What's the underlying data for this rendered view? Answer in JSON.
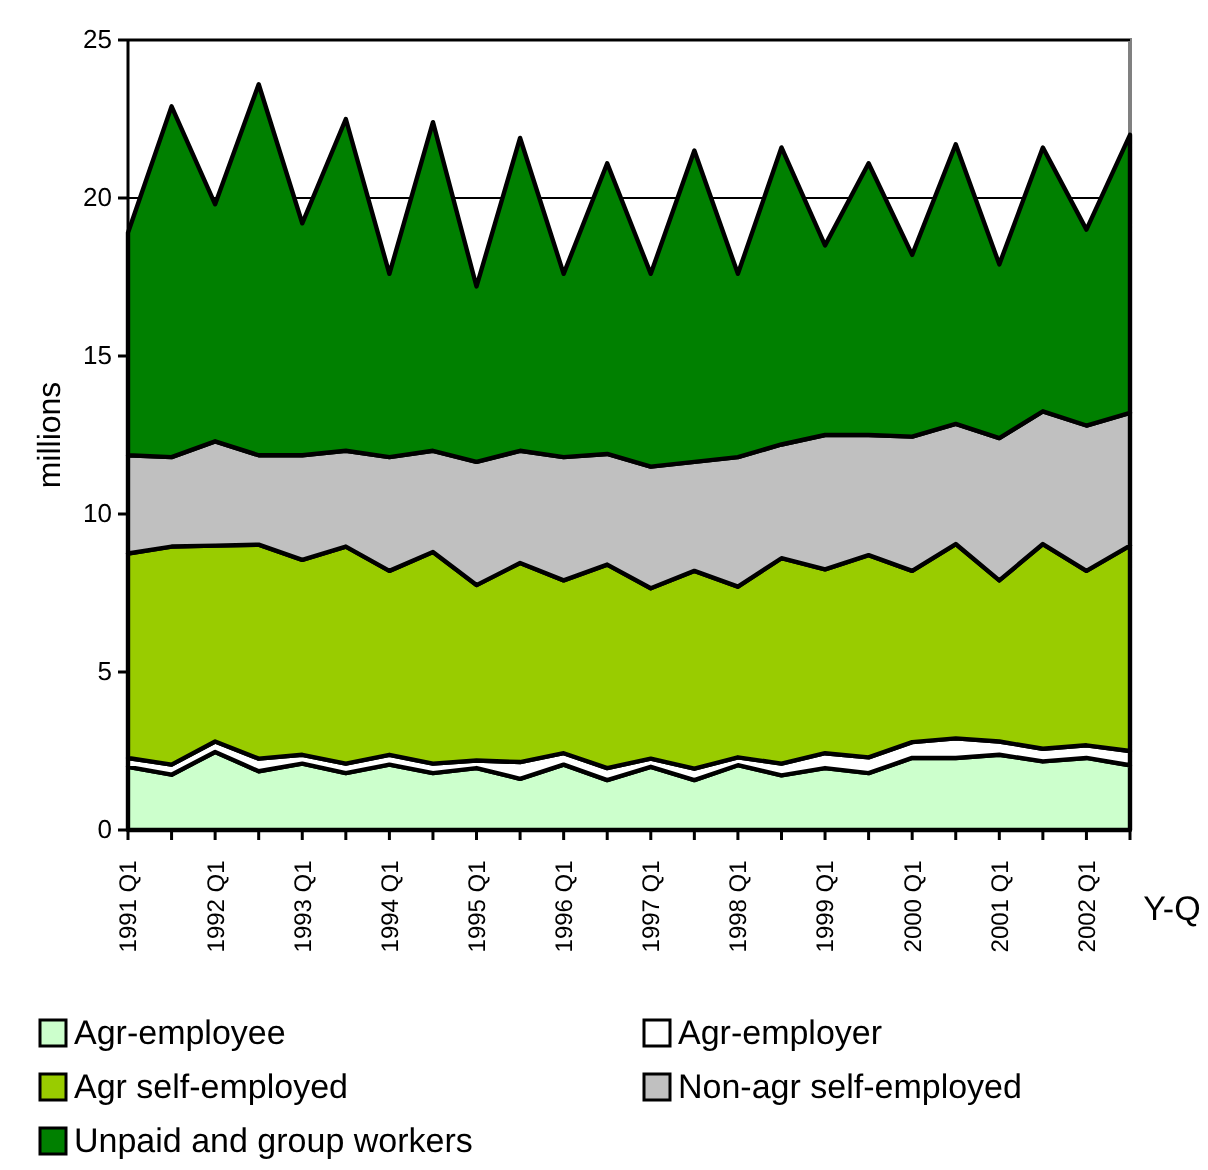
{
  "chart_data": {
    "type": "area",
    "stacked": true,
    "ylabel": "millions",
    "xlabel": "Y-Q",
    "categories": [
      "1991 Q1",
      null,
      "1992 Q1",
      null,
      "1993 Q1",
      null,
      "1994 Q1",
      null,
      "1995 Q1",
      null,
      "1996 Q1",
      null,
      "1997 Q1",
      null,
      "1998 Q1",
      null,
      "1999 Q1",
      null,
      "2000 Q1",
      null,
      "2001 Q1",
      null,
      "2002 Q1",
      null
    ],
    "series": [
      {
        "name": "Agr-employee",
        "color": "#ccffcc",
        "values": [
          2.0,
          1.75,
          2.47,
          1.86,
          2.1,
          1.8,
          2.07,
          1.8,
          1.96,
          1.62,
          2.07,
          1.58,
          2.0,
          1.58,
          2.05,
          1.73,
          1.96,
          1.8,
          2.28,
          2.28,
          2.38,
          2.17,
          2.28,
          2.05
        ]
      },
      {
        "name": "Agr-employer",
        "color": "#ffffff",
        "values": [
          0.28,
          0.32,
          0.33,
          0.4,
          0.28,
          0.3,
          0.31,
          0.3,
          0.24,
          0.53,
          0.36,
          0.38,
          0.26,
          0.36,
          0.25,
          0.37,
          0.47,
          0.5,
          0.5,
          0.62,
          0.42,
          0.4,
          0.4,
          0.45
        ]
      },
      {
        "name": "Agr self-employed",
        "color": "#99cc00",
        "values": [
          6.47,
          6.9,
          6.2,
          6.77,
          6.17,
          6.87,
          5.82,
          6.7,
          5.55,
          6.3,
          5.47,
          6.44,
          5.39,
          6.26,
          5.4,
          6.5,
          5.82,
          6.4,
          5.42,
          6.15,
          5.1,
          6.48,
          5.52,
          6.5
        ]
      },
      {
        "name": "Non-agr self-employed",
        "color": "#c0c0c0",
        "values": [
          3.11,
          2.83,
          3.3,
          2.83,
          3.31,
          3.03,
          3.6,
          3.2,
          3.9,
          3.55,
          3.9,
          3.5,
          3.85,
          3.45,
          4.1,
          3.6,
          4.25,
          3.8,
          4.25,
          3.8,
          4.5,
          4.2,
          4.6,
          4.2
        ]
      },
      {
        "name": "Unpaid and group workers",
        "color": "#008000",
        "values": [
          7.04,
          11.1,
          7.5,
          11.74,
          7.34,
          10.5,
          5.8,
          10.4,
          5.55,
          9.9,
          5.8,
          9.2,
          6.1,
          9.85,
          5.8,
          9.4,
          6.0,
          8.6,
          5.75,
          8.85,
          5.5,
          8.35,
          6.2,
          8.8
        ]
      }
    ],
    "ylim": [
      0,
      25
    ],
    "yticks": [
      0,
      5,
      10,
      15,
      20,
      25
    ],
    "grid": "y",
    "legend": "bottom"
  }
}
